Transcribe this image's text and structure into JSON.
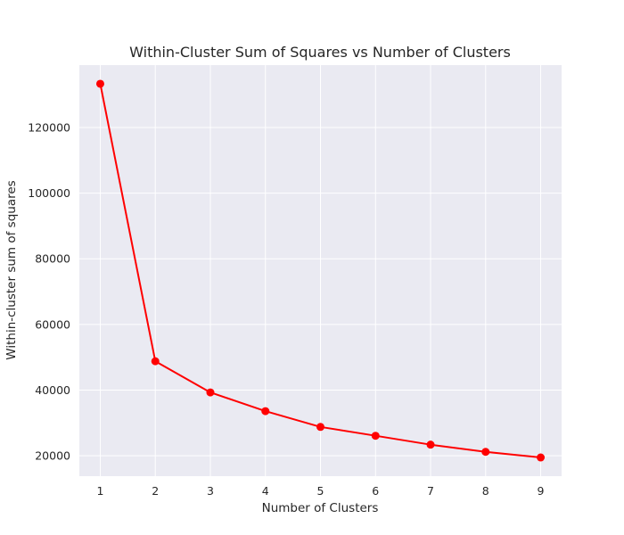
{
  "chart_data": {
    "type": "line",
    "title": "Within-Cluster Sum of Squares  vs Number of Clusters",
    "xlabel": "Number of Clusters",
    "ylabel": "Within-cluster sum of squares",
    "x": [
      1,
      2,
      3,
      4,
      5,
      6,
      7,
      8,
      9
    ],
    "series": [
      {
        "values": [
          133300,
          48800,
          39300,
          33600,
          28800,
          26100,
          23400,
          21200,
          19500
        ],
        "color": "#ff0000",
        "marker": "circle"
      }
    ],
    "xticks": [
      "1",
      "2",
      "3",
      "4",
      "5",
      "6",
      "7",
      "8",
      "9"
    ],
    "yticks": [
      20000,
      40000,
      60000,
      80000,
      100000,
      120000
    ],
    "ytick_labels": [
      "20000",
      "40000",
      "60000",
      "80000",
      "100000",
      "120000"
    ],
    "xlim": [
      0.62,
      9.38
    ],
    "ylim": [
      13800,
      139000
    ],
    "grid": true,
    "plot_background": "#eaeaf2",
    "grid_color": "#ffffff"
  }
}
